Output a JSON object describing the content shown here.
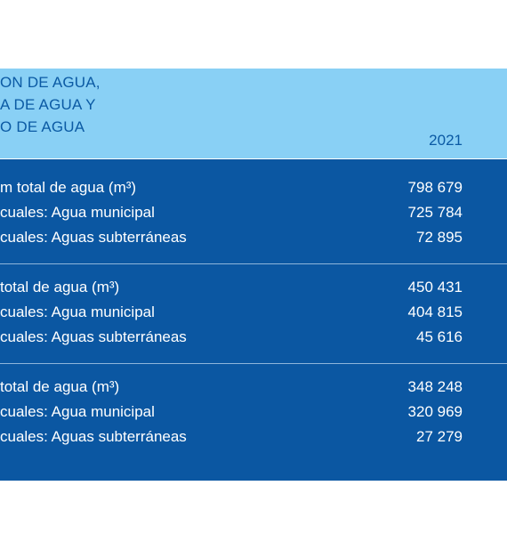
{
  "header": {
    "lines": [
      "ON DE AGUA,",
      "A DE AGUA Y",
      "O DE AGUA"
    ],
    "year": "2021"
  },
  "sections": [
    {
      "rows": [
        {
          "label": "m total de agua (m³)",
          "value": "798 679"
        },
        {
          "label": "cuales: Agua municipal",
          "value": "725 784"
        },
        {
          "label": "cuales: Aguas subterráneas",
          "value": "72 895"
        }
      ]
    },
    {
      "rows": [
        {
          "label": " total de agua (m³)",
          "value": "450 431"
        },
        {
          "label": "cuales: Agua municipal",
          "value": "404 815"
        },
        {
          "label": "cuales: Aguas subterráneas",
          "value": "45 616"
        }
      ]
    },
    {
      "rows": [
        {
          "label": " total de agua (m³)",
          "value": "348 248"
        },
        {
          "label": "cuales: Agua municipal",
          "value": "320 969"
        },
        {
          "label": "cuales: Aguas subterráneas",
          "value": "27 279"
        }
      ]
    }
  ]
}
